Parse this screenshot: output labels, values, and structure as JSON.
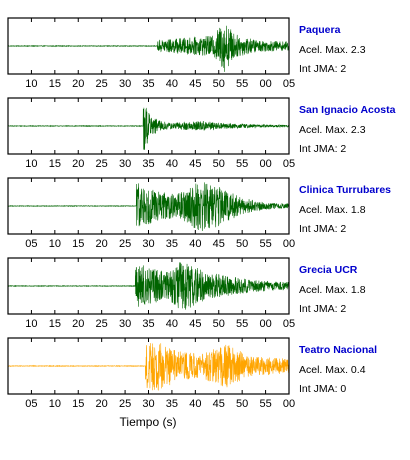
{
  "chart_data": {
    "type": "line",
    "xlabel": "Tiempo (s)",
    "grid": false,
    "accel_label": "Acel. Max.",
    "jma_label": "Int JMA:",
    "name_color": "#0000cc",
    "panels": [
      {
        "station": "Paquera",
        "accel_max": "2.3",
        "int_jma": "2",
        "color": "#006400",
        "amplitude_max": 2.3,
        "tick_labels": [
          "10",
          "15",
          "20",
          "25",
          "30",
          "35",
          "40",
          "45",
          "50",
          "55",
          "00",
          "05"
        ],
        "tick_start": 1,
        "onset": 33.5,
        "signal": [
          {
            "t": 35,
            "a": 0.25
          },
          {
            "t": 38,
            "a": 0.3
          },
          {
            "t": 46,
            "a": 0.4
          },
          {
            "t": 48.5,
            "a": 1.0
          },
          {
            "t": 51,
            "a": 0.45
          },
          {
            "t": 56,
            "a": 0.22
          },
          {
            "t": 62,
            "a": 0.18
          }
        ]
      },
      {
        "station": "San Ignacio Acosta",
        "accel_max": "2.3",
        "int_jma": "2",
        "color": "#006400",
        "amplitude_max": 2.3,
        "tick_labels": [
          "10",
          "15",
          "20",
          "25",
          "30",
          "35",
          "40",
          "45",
          "50",
          "55",
          "00",
          "05"
        ],
        "tick_start": 1,
        "onset": 30.3,
        "signal": [
          {
            "t": 30.6,
            "a": 1.0
          },
          {
            "t": 32,
            "a": 0.35
          },
          {
            "t": 36,
            "a": 0.12
          },
          {
            "t": 44,
            "a": 0.2
          },
          {
            "t": 47,
            "a": 0.12
          },
          {
            "t": 56,
            "a": 0.06
          },
          {
            "t": 62,
            "a": 0.04
          }
        ]
      },
      {
        "station": "Clinica Turrubares",
        "accel_max": "1.8",
        "int_jma": "2",
        "color": "#006400",
        "amplitude_max": 1.8,
        "tick_labels": [
          "05",
          "10",
          "15",
          "20",
          "25",
          "30",
          "35",
          "40",
          "45",
          "50",
          "55",
          "00"
        ],
        "tick_start": 1,
        "onset": 28.8,
        "signal": [
          {
            "t": 29,
            "a": 0.9
          },
          {
            "t": 33,
            "a": 0.6
          },
          {
            "t": 38,
            "a": 0.45
          },
          {
            "t": 43,
            "a": 1.0
          },
          {
            "t": 47,
            "a": 0.8
          },
          {
            "t": 52,
            "a": 0.35
          },
          {
            "t": 57,
            "a": 0.15
          },
          {
            "t": 61,
            "a": 0.1
          }
        ]
      },
      {
        "station": "Grecia UCR",
        "accel_max": "1.8",
        "int_jma": "2",
        "color": "#006400",
        "amplitude_max": 1.8,
        "tick_labels": [
          "10",
          "15",
          "20",
          "25",
          "30",
          "35",
          "40",
          "45",
          "50",
          "55",
          "00",
          "05"
        ],
        "tick_start": 1,
        "onset": 28.5,
        "signal": [
          {
            "t": 28.8,
            "a": 0.9
          },
          {
            "t": 31,
            "a": 0.75
          },
          {
            "t": 36,
            "a": 0.55
          },
          {
            "t": 39,
            "a": 1.0
          },
          {
            "t": 44,
            "a": 0.6
          },
          {
            "t": 50,
            "a": 0.35
          },
          {
            "t": 56,
            "a": 0.22
          },
          {
            "t": 62,
            "a": 0.15
          }
        ]
      },
      {
        "station": "Teatro Nacional",
        "accel_max": "0.4",
        "int_jma": "0",
        "color": "#ffa500",
        "amplitude_max": 0.4,
        "tick_labels": [
          "05",
          "10",
          "15",
          "20",
          "25",
          "30",
          "35",
          "40",
          "45",
          "50",
          "55",
          "00"
        ],
        "tick_start": 1,
        "onset": 30.8,
        "signal": [
          {
            "t": 31,
            "a": 0.85
          },
          {
            "t": 33,
            "a": 1.0
          },
          {
            "t": 38,
            "a": 0.6
          },
          {
            "t": 43,
            "a": 0.45
          },
          {
            "t": 49,
            "a": 0.85
          },
          {
            "t": 54,
            "a": 0.4
          },
          {
            "t": 58,
            "a": 0.35
          },
          {
            "t": 62,
            "a": 0.3
          }
        ]
      }
    ]
  }
}
